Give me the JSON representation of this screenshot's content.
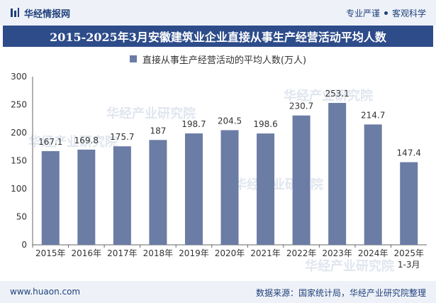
{
  "header": {
    "brand": "华经情报网",
    "slogan_left": "专业严谨",
    "slogan_right": "客观科学"
  },
  "footer": {
    "url": "www.huaon.com",
    "source": "数据来源：国家统计局，华经产业研究院整理"
  },
  "watermark": "华经产业研究院",
  "colors": {
    "bar": "#6b7ca5",
    "header_band": "#2e4c8a",
    "brand": "#1f3f7a"
  },
  "chart_data": {
    "type": "bar",
    "title": "2015-2025年3月安徽建筑业企业直接从事生产经营活动平均人数",
    "legend": "直接从事生产经营活动的平均人数(万人)",
    "categories": [
      "2015年",
      "2016年",
      "2017年",
      "2018年",
      "2019年",
      "2020年",
      "2021年",
      "2022年",
      "2023年",
      "2024年",
      "2025年"
    ],
    "category_sublabels": [
      "",
      "",
      "",
      "",
      "",
      "",
      "",
      "",
      "",
      "",
      "1-3月"
    ],
    "values": [
      167.1,
      169.8,
      175.7,
      187,
      198.7,
      204.5,
      198.6,
      230.7,
      253.1,
      214.7,
      147.4
    ],
    "value_labels": [
      "167.1",
      "169.8",
      "175.7",
      "187",
      "198.7",
      "204.5",
      "198.6",
      "230.7",
      "253.1",
      "214.7",
      "147.4"
    ],
    "ylim": [
      0,
      300
    ],
    "yticks": [
      0,
      50,
      100,
      150,
      200,
      250,
      300
    ],
    "xlabel": "",
    "ylabel": ""
  }
}
